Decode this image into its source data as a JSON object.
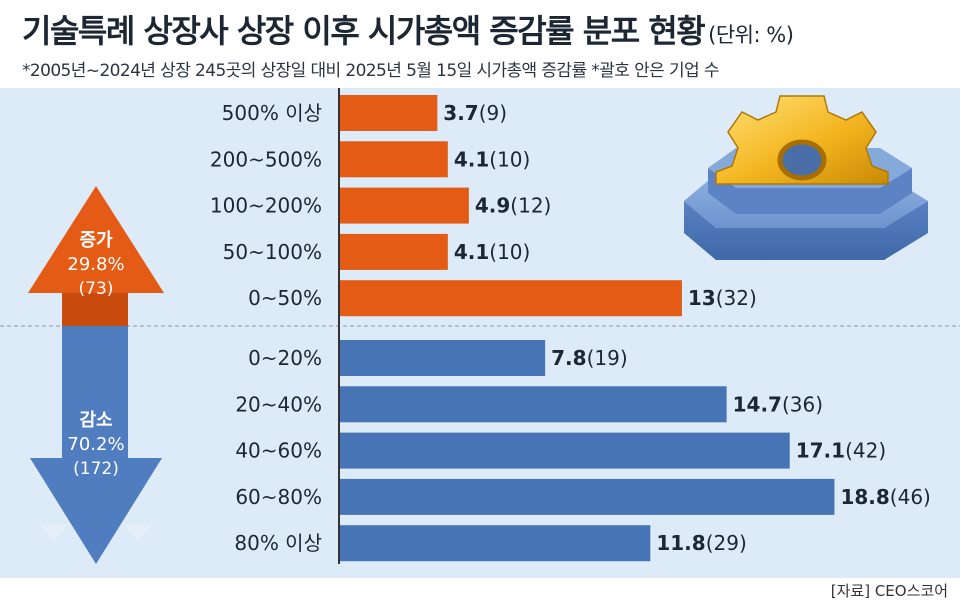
{
  "chart_data": {
    "type": "bar",
    "title": "기술특례 상장사 상장 이후 시가총액 증감률 분포 현황",
    "unit": "(단위: %)",
    "subtitle": "*2005년~2024년 상장 245곳의 상장일 대비 2025년 5월 15일 시가총액 증감률   *괄호 안은 기업 수",
    "source": "[자료] CEO스코어",
    "orientation": "horizontal",
    "groups": [
      {
        "name": "증가",
        "percent": "29.8%",
        "count": "(73)",
        "color": "#e35b15",
        "categories": [
          "500% 이상",
          "200~500%",
          "100~200%",
          "50~100%",
          "0~50%"
        ],
        "values": [
          3.7,
          4.1,
          4.9,
          4.1,
          13
        ],
        "counts": [
          9,
          10,
          12,
          10,
          32
        ]
      },
      {
        "name": "감소",
        "percent": "70.2%",
        "count": "(172)",
        "color": "#4774b5",
        "categories": [
          "0~20%",
          "20~40%",
          "40~60%",
          "60~80%",
          "80% 이상"
        ],
        "values": [
          7.8,
          14.7,
          17.1,
          18.8,
          11.8
        ],
        "counts": [
          19,
          36,
          42,
          46,
          29
        ]
      }
    ],
    "grid": false,
    "legend": "none"
  },
  "colors": {
    "increase": "#e35b15",
    "decrease": "#4774b5",
    "panel": "#ddeaf7",
    "text": "#1c2733"
  },
  "icons": [
    "gear-icon",
    "up-arrow-icon",
    "down-arrow-icon"
  ]
}
